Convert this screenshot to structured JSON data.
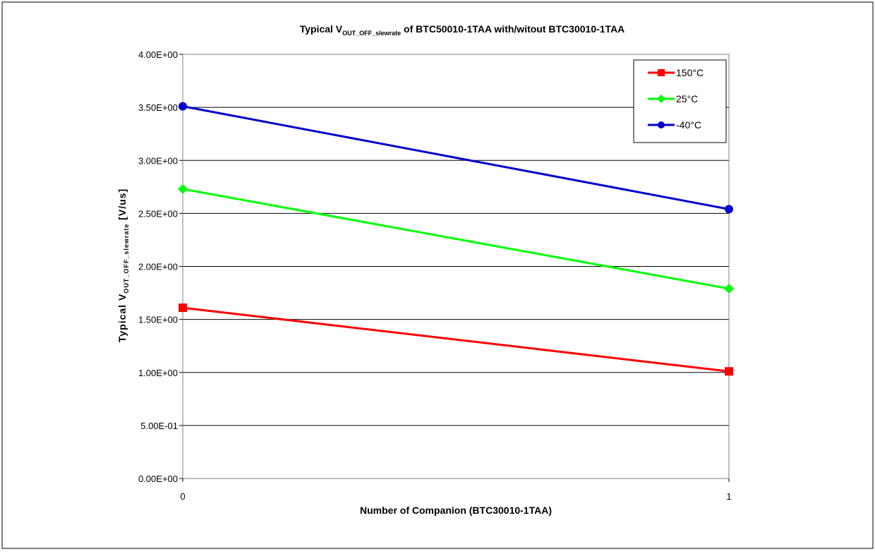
{
  "chart_data": {
    "type": "line",
    "title": {
      "prefix": "Typical V",
      "subscript": "OUT_OFF_slewrate",
      "suffix": " of BTC50010-1TAA with/witout BTC30010-1TAA"
    },
    "xlabel": "Number of Companion (BTC30010-1TAA)",
    "ylabel": {
      "prefix": "Typical V",
      "subscript": "OUT_OFF_slewrate",
      "suffix": " [V/us]"
    },
    "x": [
      0,
      1
    ],
    "x_tick_labels": [
      "0",
      "1"
    ],
    "xlim": [
      0,
      1
    ],
    "ylim": [
      0,
      4.0
    ],
    "y_ticks": [
      0,
      0.5,
      1.0,
      1.5,
      2.0,
      2.5,
      3.0,
      3.5,
      4.0
    ],
    "y_tick_labels": [
      "0.00E+00",
      "5.00E-01",
      "1.00E+00",
      "1.50E+00",
      "2.00E+00",
      "2.50E+00",
      "3.00E+00",
      "3.50E+00",
      "4.00E+00"
    ],
    "grid": "horizontal",
    "legend_position": "top-right",
    "series": [
      {
        "name": "150°C",
        "values": [
          1.61,
          1.01
        ],
        "color": "#ff0000",
        "marker": "square"
      },
      {
        "name": "25°C",
        "values": [
          2.73,
          1.79
        ],
        "color": "#00ff00",
        "marker": "diamond"
      },
      {
        "name": "-40°C",
        "values": [
          3.51,
          2.54
        ],
        "color": "#0000cc",
        "marker": "circle"
      }
    ]
  }
}
